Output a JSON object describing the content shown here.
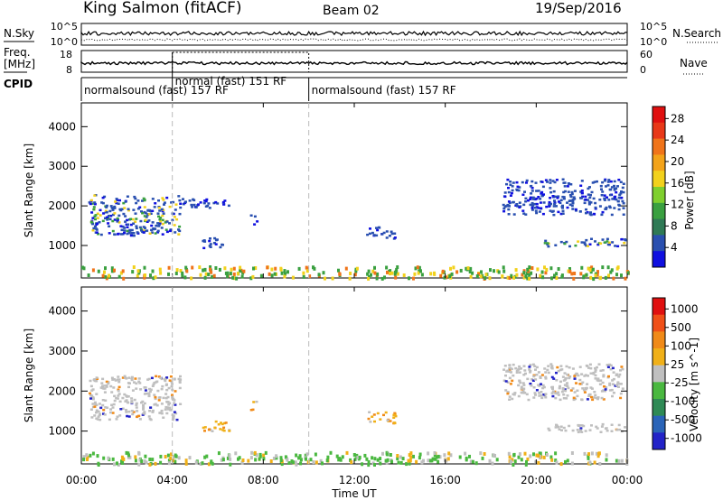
{
  "header": {
    "station": "King Salmon (fitACF)",
    "beam": "Beam 02",
    "date": "19/Sep/2016"
  },
  "status_panel": {
    "nsky_label": "N.Sky",
    "nsearch_label": "N.Search",
    "nsky_ticks": [
      "10^5",
      "10^0"
    ],
    "nsearch_ticks": [
      "10^5",
      "10^0"
    ],
    "freq_label_1": "Freq.",
    "freq_label_2": "[MHz]",
    "freq_ticks": [
      "18",
      "8"
    ],
    "nave_label": "Nave",
    "nave_ticks": [
      "60",
      "0"
    ],
    "cpid_label": "CPID",
    "cpid_segments": [
      {
        "name": "normalsound (fast) 157 RF",
        "start_h": 0,
        "end_h": 4
      },
      {
        "name": "normal (fast) 151 RF",
        "start_h": 4,
        "end_h": 10
      },
      {
        "name": "normalsound (fast) 157 RF",
        "start_h": 10,
        "end_h": 24
      }
    ]
  },
  "chart_data": [
    {
      "type": "heatmap",
      "panel": "power",
      "ylabel": "Slant Range [km]",
      "xlim": [
        0,
        24
      ],
      "ylim": [
        180,
        4600
      ],
      "yticks": [
        "1000",
        "2000",
        "3000",
        "4000"
      ],
      "colorbar": {
        "label": "Power [dB]",
        "ticks": [
          "4",
          "8",
          "12",
          "16",
          "20",
          "24",
          "28"
        ],
        "colors": [
          "#1010e0",
          "#2a50b0",
          "#2f7a55",
          "#3aa040",
          "#7fcf2e",
          "#f2d11c",
          "#f3a31a",
          "#f0741a",
          "#e83818",
          "#e01010"
        ]
      },
      "echo_regions": [
        {
          "t0": 0.3,
          "t1": 4.3,
          "r0": 1300,
          "r1": 2300,
          "level": "mixed"
        },
        {
          "t0": 1.5,
          "t1": 2.8,
          "r0": 1250,
          "r1": 1450,
          "level": "low"
        },
        {
          "t0": 4.2,
          "t1": 6.5,
          "r0": 1950,
          "r1": 2200,
          "level": "low"
        },
        {
          "t0": 5.3,
          "t1": 6.3,
          "r0": 950,
          "r1": 1250,
          "level": "low"
        },
        {
          "t0": 7.4,
          "t1": 7.7,
          "r0": 1550,
          "r1": 1800,
          "level": "low"
        },
        {
          "t0": 12.5,
          "t1": 13.8,
          "r0": 1200,
          "r1": 1500,
          "level": "low"
        },
        {
          "t0": 18.5,
          "t1": 23.8,
          "r0": 1800,
          "r1": 2700,
          "level": "low"
        },
        {
          "t0": 20.3,
          "t1": 23.9,
          "r0": 1000,
          "r1": 1200,
          "level": "mixed"
        },
        {
          "t0": 0.0,
          "t1": 24.0,
          "r0": 200,
          "r1": 500,
          "level": "ground"
        }
      ]
    },
    {
      "type": "heatmap",
      "panel": "velocity",
      "ylabel": "Slant Range [km]",
      "xlabel": "Time UT",
      "xlim": [
        0,
        24
      ],
      "ylim": [
        180,
        4600
      ],
      "xticks": [
        "00:00",
        "04:00",
        "08:00",
        "12:00",
        "16:00",
        "20:00",
        "00:00"
      ],
      "yticks": [
        "1000",
        "2000",
        "3000",
        "4000"
      ],
      "colorbar": {
        "label": "Velocity [m s^-1]",
        "ticks": [
          "1000",
          "500",
          "100",
          "25",
          "-25",
          "-100",
          "-500",
          "-1000"
        ],
        "colors": [
          "#2323c8",
          "#2a64b8",
          "#2f8a55",
          "#4ab840",
          "#bfbfbf",
          "#f0b018",
          "#f08a18",
          "#f05018",
          "#e01010"
        ]
      },
      "echo_regions": [
        {
          "t0": 0.3,
          "t1": 4.3,
          "r0": 1300,
          "r1": 2400,
          "level": "gray"
        },
        {
          "t0": 5.3,
          "t1": 6.5,
          "r0": 1000,
          "r1": 1300,
          "level": "orange"
        },
        {
          "t0": 7.4,
          "t1": 7.7,
          "r0": 1550,
          "r1": 1800,
          "level": "orange"
        },
        {
          "t0": 12.5,
          "t1": 13.8,
          "r0": 1200,
          "r1": 1500,
          "level": "orange"
        },
        {
          "t0": 18.5,
          "t1": 23.8,
          "r0": 1800,
          "r1": 2700,
          "level": "gray"
        },
        {
          "t0": 20.3,
          "t1": 23.9,
          "r0": 1000,
          "r1": 1200,
          "level": "gray"
        },
        {
          "t0": 0.0,
          "t1": 24.0,
          "r0": 200,
          "r1": 500,
          "level": "ground"
        }
      ]
    }
  ]
}
